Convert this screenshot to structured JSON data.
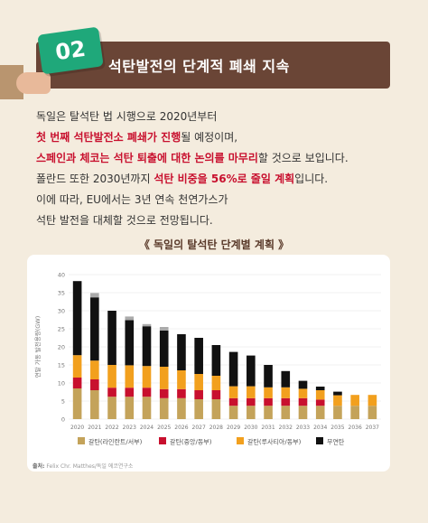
{
  "header": {
    "badge_number": "02",
    "title": "석탄발전의 단계적 폐쇄 지속"
  },
  "body": {
    "line1": "독일은 탈석탄 법 시행으로 2020년부터",
    "line2_hl": "첫 번째 석탄발전소 폐쇄가 진행",
    "line2_rest": "될 예정이며,",
    "line3_hl": "스페인과 체코는 석탄 퇴출에 대한 논의를 마무리",
    "line3_rest": "할 것으로 보입니다.",
    "line4_pre": "폴란드 또한 2030년까지 ",
    "line4_hl": "석탄 비중을 56%로 줄일 계획",
    "line4_post": "입니다.",
    "line5": "이에 따라, EU에서는 3년 연속 천연가스가",
    "line6": "석탄 발전을 대체할 것으로 전망됩니다."
  },
  "chart_title": "《 독일의 탈석탄 단계별 계획 》",
  "source": {
    "label": "출처:",
    "text": "Felix Chr. Matthes/독일 에코연구소"
  },
  "chart_data": {
    "type": "bar",
    "stacked": true,
    "ylabel": "연말 가동 발전용량(GW)",
    "ylim": [
      0,
      40
    ],
    "yticks": [
      0,
      5,
      10,
      15,
      20,
      25,
      30,
      35,
      40
    ],
    "categories": [
      "2020",
      "2021",
      "2022",
      "2023",
      "2024",
      "2025",
      "2026",
      "2027",
      "2028",
      "2029",
      "2030",
      "2031",
      "2032",
      "2033",
      "2034",
      "2035",
      "2036",
      "2037"
    ],
    "series": [
      {
        "name": "갈탄(라인란트/서부)",
        "color": "#c4a35a",
        "values": [
          8.5,
          8,
          6.2,
          6.2,
          6.2,
          5.8,
          5.8,
          5.5,
          5.5,
          3.7,
          3.7,
          3.7,
          3.7,
          3.7,
          3.7,
          3.7,
          3.7,
          3.7
        ]
      },
      {
        "name": "갈탄(중앙/동부)",
        "color": "#c8102e",
        "values": [
          3,
          3,
          2.5,
          2.5,
          2.5,
          2.5,
          2.5,
          2.5,
          2.5,
          2.1,
          2.1,
          2.1,
          2.1,
          2.1,
          1.7,
          0,
          0,
          0
        ]
      },
      {
        "name": "갈탄(루사티아/동부)",
        "color": "#f2a01e",
        "values": [
          6.2,
          5.2,
          6.3,
          6.2,
          6,
          6.2,
          5.2,
          4.5,
          4,
          3.3,
          3.3,
          3,
          3,
          2.6,
          2.6,
          2.9,
          3,
          3
        ]
      },
      {
        "name": "무연탄",
        "color": "#111111",
        "values": [
          20.5,
          17.5,
          15,
          12.5,
          11,
          10,
          10,
          10,
          8.5,
          9.5,
          8.5,
          6.2,
          4.5,
          2.2,
          1,
          1,
          0,
          0
        ]
      },
      {
        "name": "",
        "color": "#aaaaaa",
        "values": [
          0,
          1.2,
          0,
          1,
          0.6,
          1,
          0,
          0,
          0,
          0,
          0,
          0,
          0,
          0,
          0,
          0,
          0,
          0
        ]
      }
    ],
    "legend": [
      "갈탄(라인란트/서부)",
      "갈탄(중앙/동부)",
      "갈탄(루사티아/동부)",
      "무연탄"
    ],
    "legend_position": "bottom",
    "grid": true
  }
}
